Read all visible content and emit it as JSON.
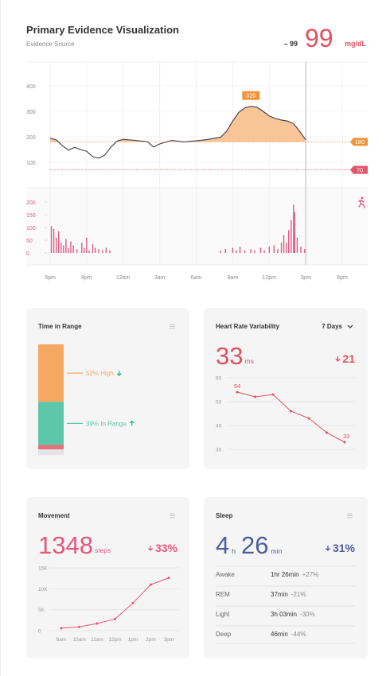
{
  "header": {
    "title": "Primary Evidence Visualization",
    "subtitle": "Evidence Source",
    "delta": "– 99",
    "current": 99,
    "unit": "mg/dL"
  },
  "chart_data": [
    {
      "type": "area",
      "x": [
        0,
        0.5,
        1,
        1.5,
        2,
        2.5,
        3,
        3.5,
        4,
        4.5,
        5,
        5.5,
        6,
        7,
        8,
        8.5,
        9,
        10,
        11,
        12,
        13,
        14,
        14.5,
        15,
        15.5,
        16,
        16.5,
        17,
        17.5,
        18,
        18.5,
        19,
        19.5,
        20,
        20.5,
        21
      ],
      "values": [
        195,
        188,
        165,
        148,
        158,
        150,
        143,
        122,
        116,
        128,
        160,
        183,
        190,
        186,
        181,
        160,
        172,
        186,
        180,
        184,
        190,
        198,
        222,
        262,
        296,
        314,
        320,
        316,
        300,
        282,
        272,
        266,
        262,
        252,
        222,
        188
      ],
      "color": "#3d3d4a",
      "fill_color": "#f9c496",
      "xlim": [
        0,
        24
      ],
      "xticks": [
        {
          "value": 0,
          "label": "6pm"
        },
        {
          "value": 3,
          "label": "9pm"
        },
        {
          "value": 6,
          "label": "12am"
        },
        {
          "value": 9,
          "label": "3am"
        },
        {
          "value": 12,
          "label": "6am"
        },
        {
          "value": 15,
          "label": "9am"
        },
        {
          "value": 18,
          "label": "12pm"
        },
        {
          "value": 21,
          "label": "3pm"
        },
        {
          "value": 24,
          "label": "6pm"
        }
      ],
      "ylim": [
        0,
        500
      ],
      "yticks": [
        100,
        200,
        300,
        400
      ],
      "grid": true,
      "high_threshold": 180,
      "high_color": "#f0943a",
      "low_threshold": 70,
      "low_color": "#e8556a",
      "peak_label": 320
    },
    {
      "type": "bar",
      "x": [
        0.1,
        0.3,
        0.5,
        0.7,
        0.9,
        1.1,
        1.3,
        1.5,
        1.7,
        1.9,
        2.2,
        2.6,
        2.8,
        3,
        3.2,
        3.5,
        3.7,
        4,
        4.3,
        4.6,
        4.9,
        14,
        14.4,
        15,
        15.3,
        15.6,
        16,
        16.5,
        16.8,
        17.3,
        17.6,
        18,
        18.4,
        18.7,
        19,
        19.2,
        19.4,
        19.6,
        19.8,
        20,
        20.1,
        20.3,
        20.6,
        20.9
      ],
      "values": [
        105,
        95,
        60,
        85,
        40,
        30,
        55,
        20,
        45,
        30,
        15,
        40,
        20,
        60,
        10,
        35,
        20,
        15,
        10,
        20,
        10,
        10,
        15,
        20,
        10,
        25,
        10,
        15,
        10,
        20,
        10,
        25,
        30,
        15,
        40,
        70,
        40,
        90,
        130,
        190,
        160,
        60,
        25,
        15
      ],
      "color": "#e05a80",
      "xlim": [
        0,
        24
      ],
      "ylim": [
        0,
        250
      ],
      "yticks": [
        0,
        50,
        100,
        150,
        200
      ]
    },
    {
      "type": "stacked_bar",
      "title": "Time in Range",
      "segments": [
        {
          "value": 52,
          "label": "52% High",
          "color": "#f5a862",
          "trend": "down"
        },
        {
          "value": 39,
          "label": "39% In Range",
          "color": "#5cc7aa",
          "trend": "up"
        },
        {
          "value": 4,
          "color": "#e8707a"
        },
        {
          "value": 5,
          "color": "#e3e3e8"
        }
      ],
      "trend_color": "#2bb58f"
    },
    {
      "type": "line",
      "title": "Heart Rate Variability",
      "period": "7 Days",
      "current": 33,
      "unit": "ms",
      "change": 21,
      "color": "#e0505e",
      "values": [
        54,
        52,
        53,
        46,
        43,
        37,
        33
      ],
      "value_labels": [
        "54",
        null,
        null,
        null,
        null,
        null,
        "33"
      ],
      "ylim": [
        30,
        60
      ],
      "yticks": [
        30,
        40,
        50,
        60
      ]
    },
    {
      "type": "line",
      "title": "Movement",
      "current": 1348,
      "unit": "steps",
      "change": "33%",
      "color": "#e8577a",
      "categories": [
        "6am",
        "10am",
        "11am",
        "12pm",
        "1pm",
        "2pm",
        "3pm"
      ],
      "values": [
        600,
        900,
        1700,
        2800,
        6600,
        11000,
        12600
      ],
      "ylim": [
        0,
        15000
      ],
      "yticks": [
        0,
        {
          "value": 5000,
          "label": "5K"
        },
        {
          "value": 10000,
          "label": "10K"
        },
        {
          "value": 15000,
          "label": "15K"
        }
      ]
    }
  ],
  "sleep": {
    "title": "Sleep",
    "hours": 4,
    "hours_unit": "h",
    "minutes": 26,
    "minutes_unit": "min",
    "change": "31%",
    "color": "#4a5e9e",
    "rows": [
      [
        "Awake",
        "1hr 26min",
        "+27%"
      ],
      [
        "REM",
        "37min",
        "-21%"
      ],
      [
        "Light",
        "3h 03min",
        "-30%"
      ],
      [
        "Deep",
        "46min",
        "-44%"
      ]
    ]
  }
}
